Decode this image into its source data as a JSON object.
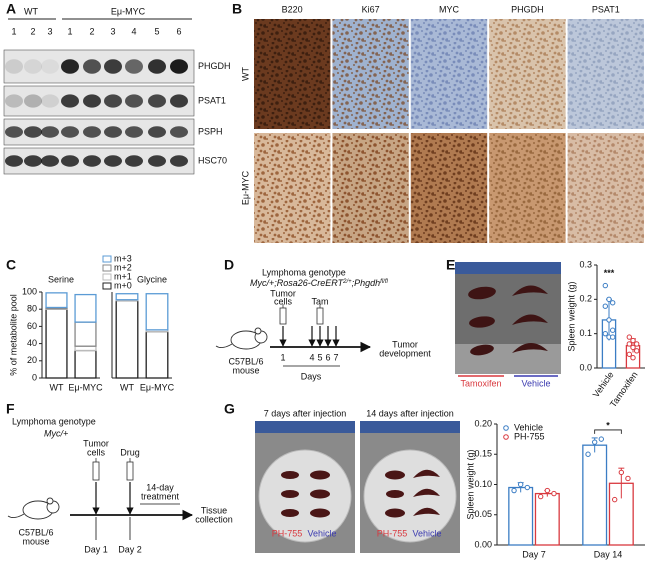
{
  "figure": {
    "A": {
      "label": "A",
      "groups": [
        "WT",
        "Eμ-MYC"
      ],
      "lanes": [
        "1",
        "2",
        "3",
        "1",
        "2",
        "3",
        "4",
        "5",
        "6"
      ],
      "proteins": [
        "PHGDH",
        "PSAT1",
        "PSPH",
        "HSC70"
      ]
    },
    "B": {
      "label": "B",
      "stains": [
        "B220",
        "Ki67",
        "MYC",
        "PHGDH",
        "PSAT1"
      ],
      "rows": [
        "WT",
        "Eμ-MYC"
      ]
    },
    "C": {
      "label": "C"
    },
    "D": {
      "label": "D",
      "title": "Lymphoma genotype",
      "genotype": [
        {
          "text": "Myc/+;Rosa26-CreERT"
        },
        {
          "text": "2/+",
          "sup": true
        },
        {
          "text": ";Phgdh"
        },
        {
          "text": "fl/fl",
          "sup": true
        }
      ],
      "injection_label": [
        "Tumor",
        "cells"
      ],
      "drug": "Tam",
      "mouse": [
        "C57BL/6",
        "mouse"
      ],
      "outcome": [
        "Tumor",
        "development"
      ],
      "days": [
        "1",
        "4",
        "5",
        "6",
        "7"
      ],
      "days_label": "Days"
    },
    "E": {
      "label": "E",
      "photo_labels": [
        "Tamoxifen",
        "Vehicle"
      ]
    },
    "F": {
      "label": "F",
      "title": "Lymphoma genotype",
      "genotype": "Myc/+",
      "injection_label": [
        "Tumor",
        "cells"
      ],
      "drug": "Drug",
      "treatment": [
        "14-day",
        "treatment"
      ],
      "outcome": [
        "Tissue",
        "collection"
      ],
      "mouse": [
        "C57BL/6",
        "mouse"
      ],
      "days": [
        "Day 1",
        "Day 2"
      ]
    },
    "G": {
      "label": "G",
      "photo_titles": [
        "7 days after injection",
        "14 days after injection"
      ],
      "photo_labels": [
        "PH-755",
        "Vehicle"
      ]
    }
  },
  "chart_data": [
    {
      "type": "bar",
      "stacked": true,
      "title": "Serine",
      "ylabel": "% of metabolite pool",
      "categories": [
        "WT",
        "Eμ-MYC"
      ],
      "series": [
        {
          "name": "m+0",
          "color": "#222222",
          "values": [
            80,
            32
          ]
        },
        {
          "name": "m+1",
          "color": "#bbbbbb",
          "values": [
            1,
            5
          ]
        },
        {
          "name": "m+2",
          "color": "#888888",
          "values": [
            1,
            28
          ]
        },
        {
          "name": "m+3",
          "color": "#5b9bd5",
          "values": [
            17,
            32
          ]
        }
      ],
      "legend": "upper right",
      "ylim": [
        0,
        100
      ],
      "yticks": [
        0,
        20,
        40,
        60,
        80,
        100
      ]
    },
    {
      "type": "bar",
      "stacked": true,
      "title": "Glycine",
      "categories": [
        "WT",
        "Eμ-MYC"
      ],
      "series": [
        {
          "color": "#222222",
          "values": [
            90,
            54
          ]
        },
        {
          "color": "#bbbbbb",
          "values": [
            1,
            2
          ]
        },
        {
          "color": "#5b9bd5",
          "values": [
            7,
            42
          ]
        }
      ],
      "ylim": [
        0,
        100
      ]
    },
    {
      "type": "bar",
      "ylabel": "Spleen weight (g)",
      "categories": [
        "Vehicle",
        "Tamoxifen"
      ],
      "values": [
        0.14,
        0.065
      ],
      "errors": [
        0.06,
        0.02
      ],
      "colors": [
        "#3b7dc4",
        "#d9393f"
      ],
      "points": [
        [
          0.24,
          0.2,
          0.19,
          0.18,
          0.14,
          0.11,
          0.1,
          0.09,
          0.09
        ],
        [
          0.09,
          0.08,
          0.07,
          0.07,
          0.06,
          0.05,
          0.04,
          0.03
        ]
      ],
      "annotation": "***",
      "ylim": [
        0,
        0.3
      ],
      "yticks": [
        {
          "value": 0,
          "label": "0.0"
        },
        0.1,
        0.2,
        0.3
      ]
    },
    {
      "type": "bar",
      "ylabel": "Spleen weight (g)",
      "categories": [
        "Day 7",
        "Day 14"
      ],
      "series": [
        {
          "name": "Vehicle",
          "color": "#3b7dc4",
          "values": [
            0.095,
            0.165
          ],
          "errors": [
            0.008,
            0.012
          ],
          "points": [
            [
              0.09,
              0.1,
              0.095
            ],
            [
              0.15,
              0.17,
              0.175
            ]
          ]
        },
        {
          "name": "PH-755",
          "color": "#d9393f",
          "values": [
            0.085,
            0.102
          ],
          "errors": [
            0.005,
            0.025
          ],
          "points": [
            [
              0.08,
              0.09,
              0.085
            ],
            [
              0.075,
              0.12,
              0.11
            ]
          ]
        }
      ],
      "legend": "upper left",
      "annotation": "*",
      "ylim": [
        0,
        0.2
      ],
      "yticks": [
        {
          "value": 0,
          "label": "0.00"
        },
        0.05,
        {
          "value": 0.1,
          "label": "0.10"
        },
        0.15,
        {
          "value": 0.2,
          "label": "0.20"
        }
      ]
    }
  ]
}
